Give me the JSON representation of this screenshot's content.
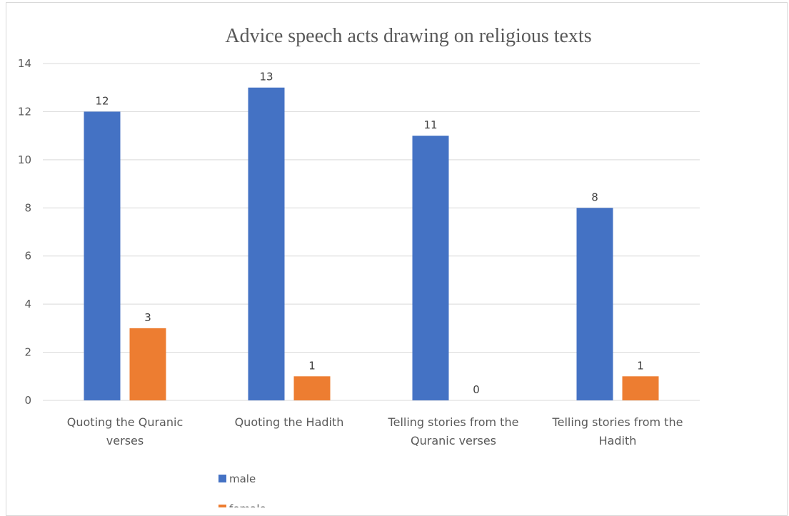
{
  "chart_data": {
    "type": "bar",
    "title": "Advice speech acts drawing on religious texts",
    "categories": [
      [
        "Quoting the Quranic",
        "verses"
      ],
      [
        "Quoting the Hadith"
      ],
      [
        "Telling stories from the",
        "Quranic verses"
      ],
      [
        "Telling stories from the",
        "Hadith"
      ]
    ],
    "series": [
      {
        "name": "male",
        "color": "#4472C4",
        "values": [
          12,
          13,
          11,
          8
        ]
      },
      {
        "name": "female",
        "color": "#ED7D31",
        "values": [
          3,
          1,
          0,
          1
        ]
      }
    ],
    "ylim": [
      0,
      14
    ],
    "yticks": [
      0,
      2,
      4,
      6,
      8,
      10,
      12,
      14
    ],
    "grid": true,
    "data_labels": true,
    "legend_position": "bottom-left",
    "gridline_color": "#d9d9d9"
  }
}
